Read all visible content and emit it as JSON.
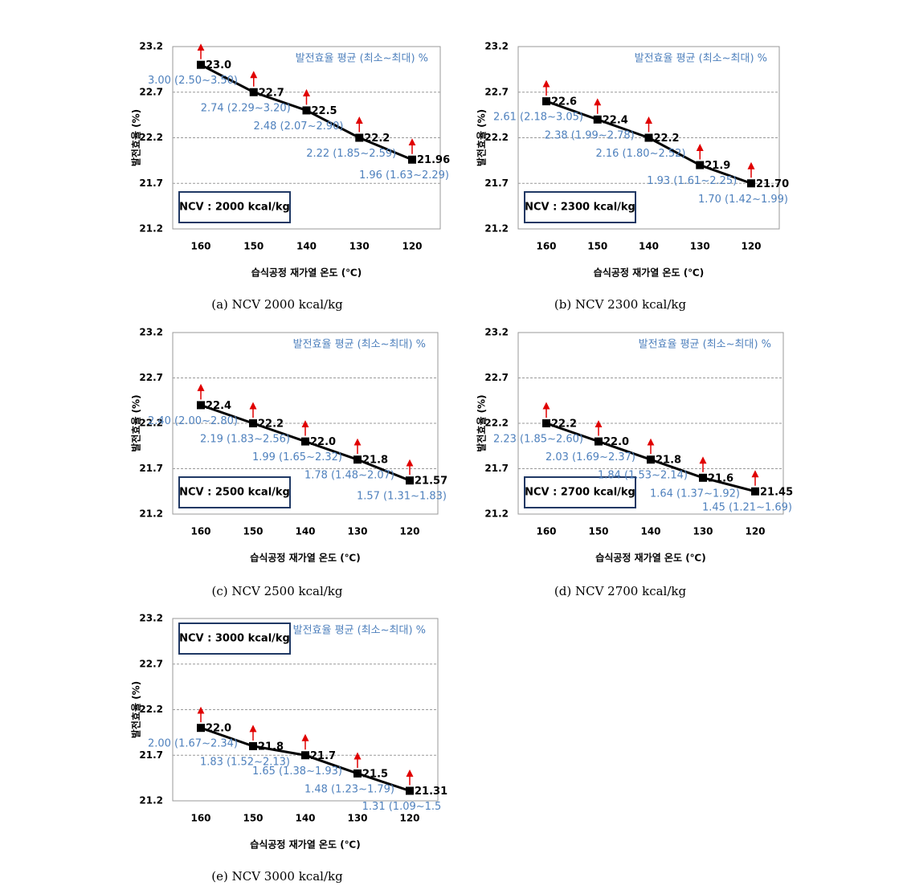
{
  "chart_data": [
    {
      "type": "line",
      "caption": "(a) NCV 2000 kcal/kg",
      "xlabel": "습식공정 재가열 온도 (℃)",
      "ylabel": "발전효율 (%)",
      "note": "발전효율 평균 (최소~최대) %",
      "box_text": "NCV : 2000 kcal/kg",
      "box_corner": "lower left",
      "categories": [
        "160",
        "150",
        "140",
        "130",
        "120"
      ],
      "series": [
        {
          "color": "#000000",
          "values": [
            23.0,
            22.7,
            22.5,
            22.2,
            21.96
          ],
          "value_labels": [
            "23.0",
            "22.7",
            "22.5",
            "22.2",
            "21.96"
          ]
        }
      ],
      "annotations": [
        "3.00 (2.50~3.50)",
        "2.74 (2.29~3.20)",
        "2.48 (2.07~2.90)",
        "2.22 (1.85~2.59)",
        "1.96 (1.63~2.29)"
      ],
      "ylim": [
        21.2,
        23.2
      ],
      "yticks": [
        21.2,
        21.7,
        22.2,
        22.7,
        23.2
      ],
      "grid": true
    },
    {
      "type": "line",
      "caption": "(b) NCV 2300 kcal/kg",
      "xlabel": "습식공정 재가열 온도 (℃)",
      "ylabel": "발전효율 (%)",
      "note": "발전효율 평균 (최소~최대) %",
      "box_text": "NCV : 2300 kcal/kg",
      "box_corner": "lower left",
      "categories": [
        "160",
        "150",
        "140",
        "130",
        "120"
      ],
      "series": [
        {
          "color": "#000000",
          "values": [
            22.6,
            22.4,
            22.2,
            21.9,
            21.7
          ],
          "value_labels": [
            "22.6",
            "22.4",
            "22.2",
            "21.9",
            "21.70"
          ]
        }
      ],
      "annotations": [
        "2.61 (2.18~3.05)",
        "2.38 (1.99~2.78)",
        "2.16 (1.80~2.52)",
        "1.93 (1.61~2.25)",
        "1.70 (1.42~1.99)"
      ],
      "ylim": [
        21.2,
        23.2
      ],
      "yticks": [
        21.2,
        21.7,
        22.2,
        22.7,
        23.2
      ],
      "grid": true
    },
    {
      "type": "line",
      "caption": "(c) NCV 2500 kcal/kg",
      "xlabel": "습식공정 재가열 온도 (℃)",
      "ylabel": "발전효율 (%)",
      "note": "발전효율 평균 (최소~최대) %",
      "box_text": "NCV : 2500 kcal/kg",
      "box_corner": "lower left",
      "categories": [
        "160",
        "150",
        "140",
        "130",
        "120"
      ],
      "series": [
        {
          "color": "#000000",
          "values": [
            22.4,
            22.2,
            22.0,
            21.8,
            21.57
          ],
          "value_labels": [
            "22.4",
            "22.2",
            "22.0",
            "21.8",
            "21.57"
          ]
        }
      ],
      "annotations": [
        "2.40 (2.00~2.80)",
        "2.19 (1.83~2.56)",
        "1.99 (1.65~2.32)",
        "1.78 (1.48~2.07)",
        "1.57 (1.31~1.83)"
      ],
      "ylim": [
        21.2,
        23.2
      ],
      "yticks": [
        21.2,
        21.7,
        22.2,
        22.7,
        23.2
      ],
      "grid": true
    },
    {
      "type": "line",
      "caption": "(d) NCV 2700 kcal/kg",
      "xlabel": "습식공정 재가열 온도 (℃)",
      "ylabel": "발전효율 (%)",
      "note": "발전효율 평균 (최소~최대) %",
      "box_text": "NCV : 2700 kcal/kg",
      "box_corner": "lower left",
      "categories": [
        "160",
        "150",
        "140",
        "130",
        "120"
      ],
      "series": [
        {
          "color": "#000000",
          "values": [
            22.2,
            22.0,
            21.8,
            21.6,
            21.45
          ],
          "value_labels": [
            "22.2",
            "22.0",
            "21.8",
            "21.6",
            "21.45"
          ]
        }
      ],
      "annotations": [
        "2.23 (1.85~2.60)",
        "2.03 (1.69~2.37)",
        "1.84 (1.53~2.14)",
        "1.64 (1.37~1.92)",
        "1.45 (1.21~1.69)"
      ],
      "ylim": [
        21.2,
        23.2
      ],
      "yticks": [
        21.2,
        21.7,
        22.2,
        22.7,
        23.2
      ],
      "grid": true
    },
    {
      "type": "line",
      "caption": "(e) NCV 3000 kcal/kg",
      "xlabel": "습식공정 재가열 온도 (℃)",
      "ylabel": "발전효율 (%)",
      "note": "발전효율 평균 (최소~최대) %",
      "box_text": "NCV : 3000 kcal/kg",
      "box_corner": "upper left",
      "categories": [
        "160",
        "150",
        "140",
        "130",
        "120"
      ],
      "series": [
        {
          "color": "#000000",
          "values": [
            22.0,
            21.8,
            21.7,
            21.5,
            21.31
          ],
          "value_labels": [
            "22.0",
            "21.8",
            "21.7",
            "21.5",
            "21.31"
          ]
        }
      ],
      "annotations": [
        "2.00 (1.67~2.34)",
        "1.83 (1.52~2.13)",
        "1.65 (1.38~1.93)",
        "1.48 (1.23~1.79)",
        "1.31 (1.09~1.5"
      ],
      "ylim": [
        21.2,
        23.2
      ],
      "yticks": [
        21.2,
        21.7,
        22.2,
        22.7,
        23.2
      ],
      "grid": true
    }
  ]
}
